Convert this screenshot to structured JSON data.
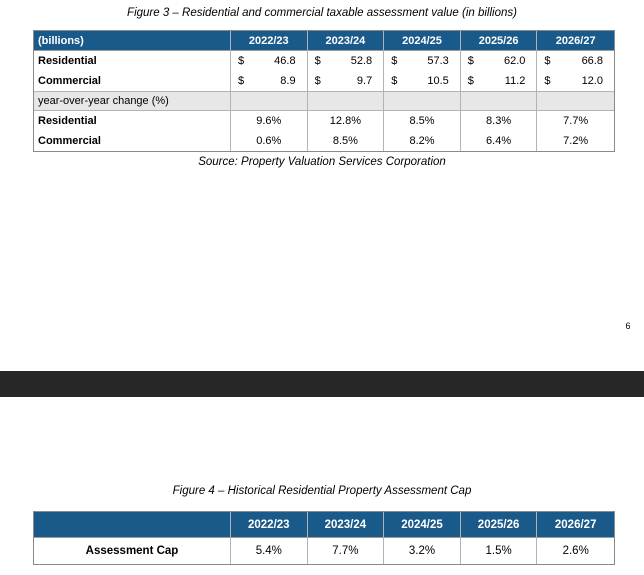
{
  "page": {
    "page_number": "6",
    "background_color": "#ffffff",
    "page_break_band_color": "#272727"
  },
  "colors": {
    "table_header_bg": "#1a5a8b",
    "table_header_text": "#ffffff",
    "gray_row_bg": "#e7e7e7",
    "table_border": "#8a8a8a",
    "cell_border": "#b3b3b3"
  },
  "fig3": {
    "title": "Figure 3 – Residential and commercial taxable assessment value (in billions)",
    "source": "Source: Property Valuation Services Corporation",
    "currency_symbol": "$",
    "header": [
      "(billions)",
      "2022/23",
      "2023/24",
      "2024/25",
      "2025/26",
      "2026/27"
    ],
    "rows": {
      "residential_value": {
        "label": "Residential",
        "values": [
          "46.8",
          "52.8",
          "57.3",
          "62.0",
          "66.8"
        ]
      },
      "commercial_value": {
        "label": "Commercial",
        "values": [
          "8.9",
          "9.7",
          "10.5",
          "11.2",
          "12.0"
        ]
      },
      "yoy": {
        "label": "year-over-year change (%)"
      },
      "residential_pct": {
        "label": "Residential",
        "values": [
          "9.6%",
          "12.8%",
          "8.5%",
          "8.3%",
          "7.7%"
        ]
      },
      "commercial_pct": {
        "label": "Commercial",
        "values": [
          "0.6%",
          "8.5%",
          "8.2%",
          "6.4%",
          "7.2%"
        ]
      }
    }
  },
  "fig4": {
    "title": "Figure 4 – Historical Residential Property Assessment Cap",
    "header": [
      "",
      "2022/23",
      "2023/24",
      "2024/25",
      "2025/26",
      "2026/27"
    ],
    "row": {
      "label": "Assessment Cap",
      "values": [
        "5.4%",
        "7.7%",
        "3.2%",
        "1.5%",
        "2.6%"
      ]
    }
  },
  "chart_data": [
    {
      "type": "table",
      "title": "Figure 3 – Residential and commercial taxable assessment value (in billions)",
      "categories": [
        "2022/23",
        "2023/24",
        "2024/25",
        "2025/26",
        "2026/27"
      ],
      "series": [
        {
          "name": "Residential taxable assessment ($B)",
          "values": [
            46.8,
            52.8,
            57.3,
            62.0,
            66.8
          ]
        },
        {
          "name": "Commercial taxable assessment ($B)",
          "values": [
            8.9,
            9.7,
            10.5,
            11.2,
            12.0
          ]
        },
        {
          "name": "Residential year-over-year change (%)",
          "values": [
            9.6,
            12.8,
            8.5,
            8.3,
            7.7
          ]
        },
        {
          "name": "Commercial year-over-year change (%)",
          "values": [
            0.6,
            8.5,
            8.2,
            6.4,
            7.2
          ]
        }
      ]
    },
    {
      "type": "table",
      "title": "Figure 4 – Historical Residential Property Assessment Cap",
      "categories": [
        "2022/23",
        "2023/24",
        "2024/25",
        "2025/26",
        "2026/27"
      ],
      "series": [
        {
          "name": "Assessment Cap (%)",
          "values": [
            5.4,
            7.7,
            3.2,
            1.5,
            2.6
          ]
        }
      ]
    }
  ]
}
